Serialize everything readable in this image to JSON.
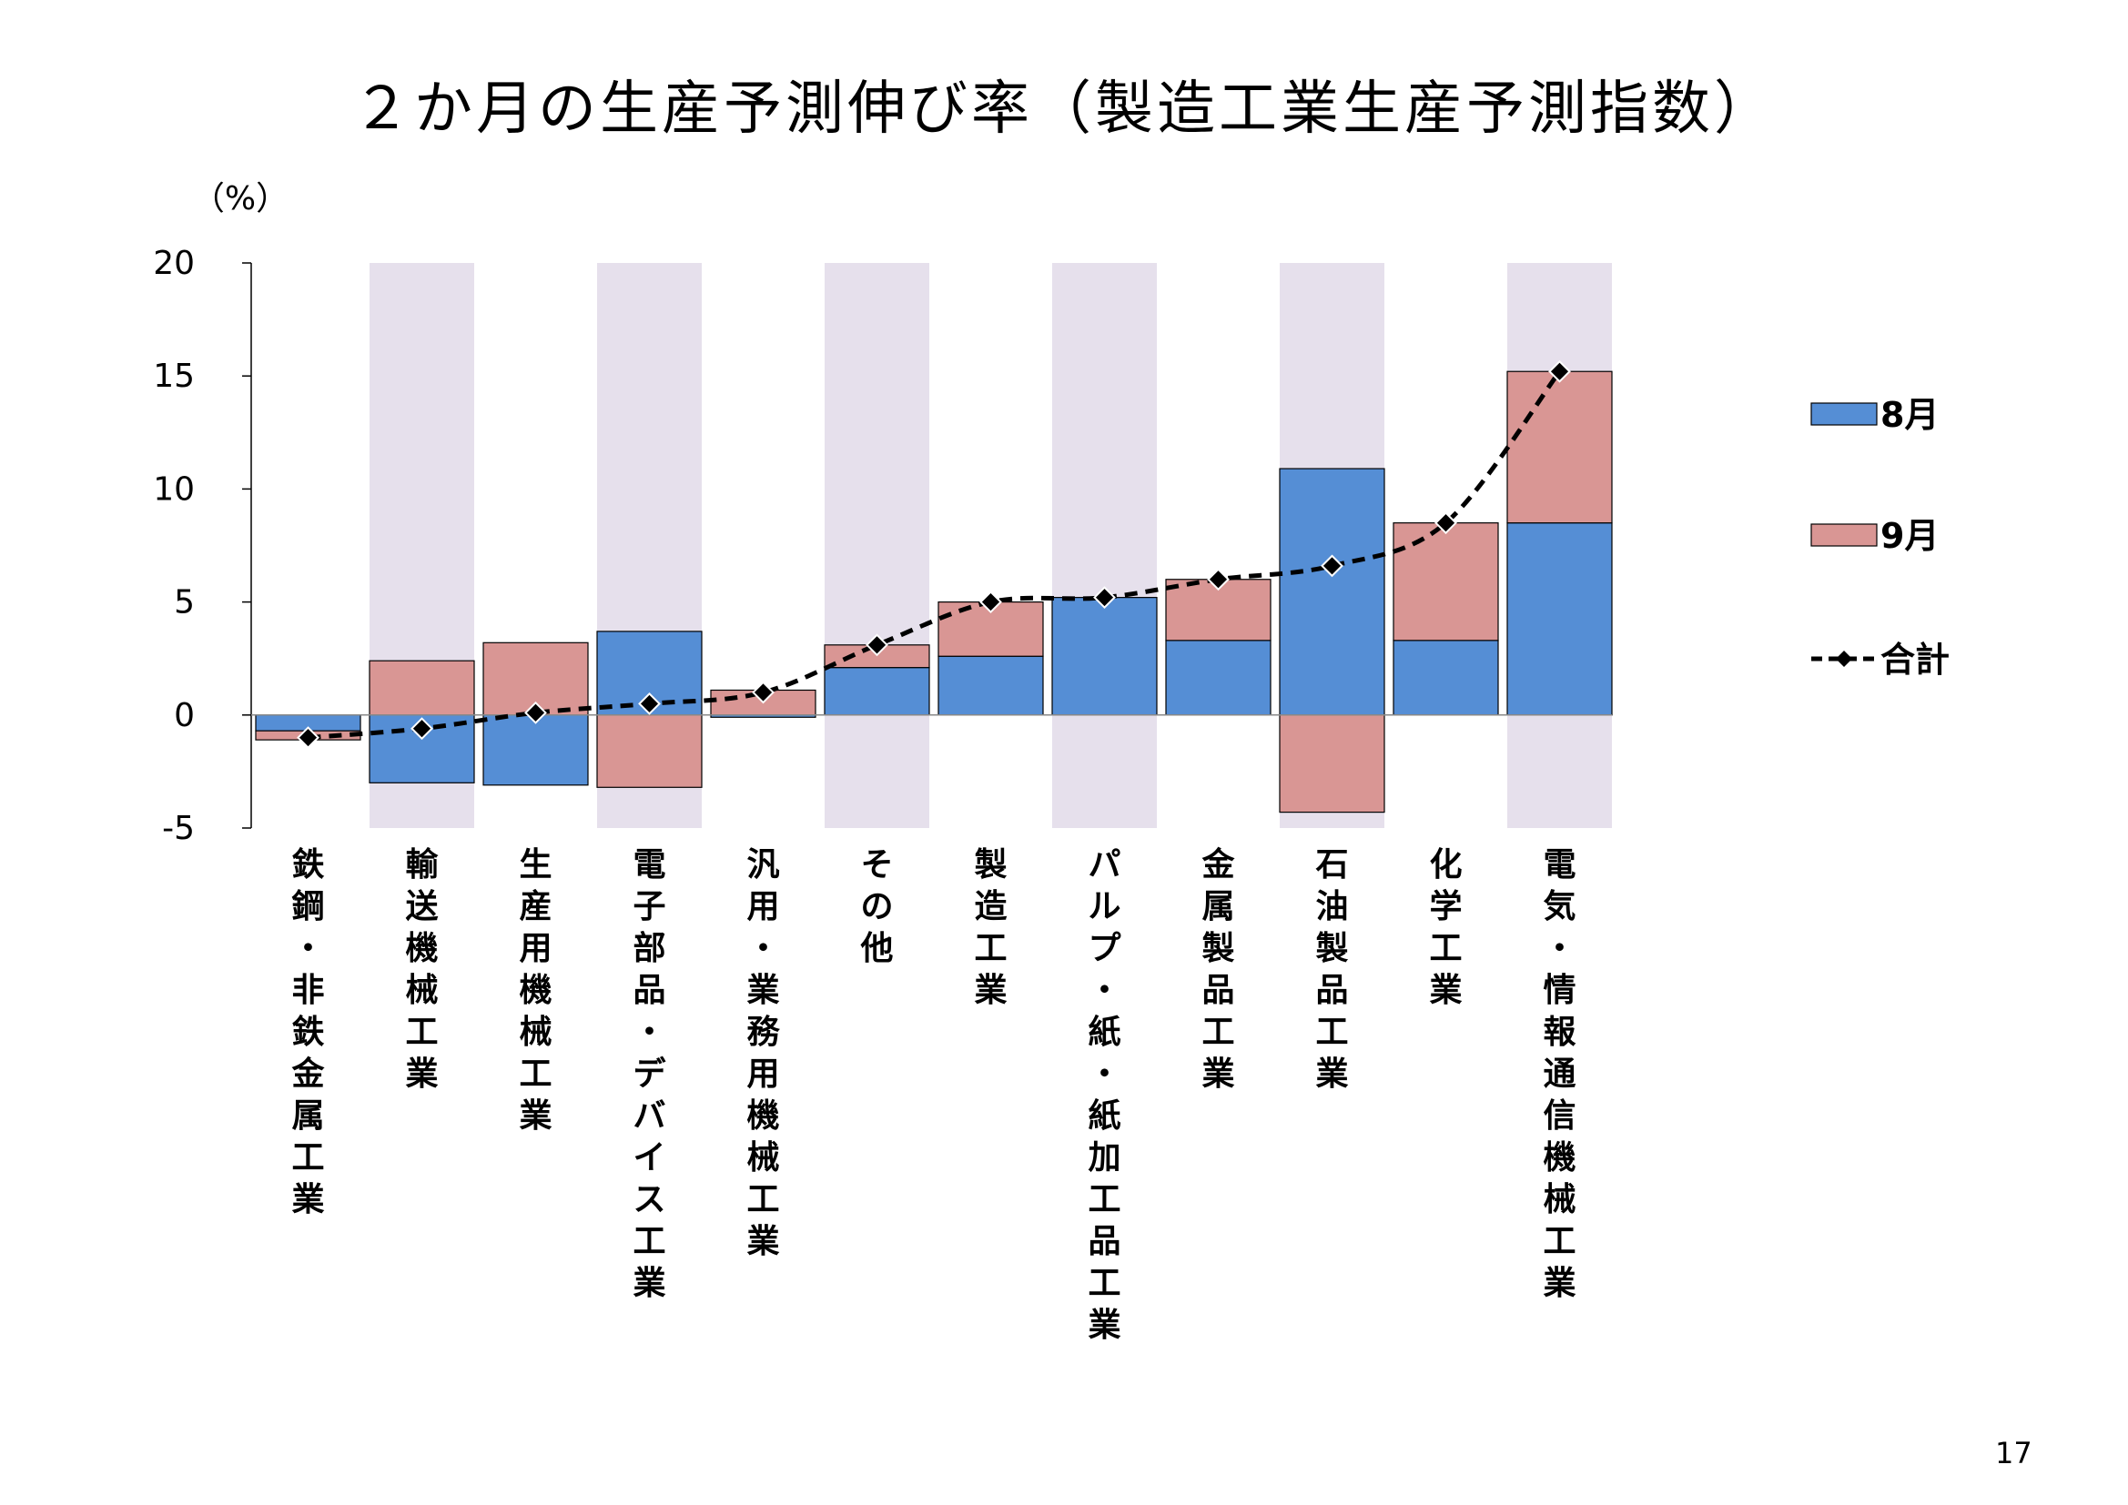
{
  "page": {
    "number": "17"
  },
  "chart_data": {
    "type": "bar",
    "stacked": true,
    "title": "２か月の生産予測伸び率（製造工業生産予測指数）",
    "ylabel": "（%）",
    "xlabel": "",
    "ylim": [
      -5,
      20
    ],
    "yticks": [
      "20",
      "15",
      "10",
      "5",
      "0",
      "-5"
    ],
    "grid": false,
    "legend_position": "right",
    "shaded_bands": "alternate categories",
    "colors": {
      "aug": "#558ed5",
      "sep": "#d99694",
      "band": "#e6e0ec",
      "total_line": "#000000",
      "total_marker_fill": "#000000",
      "total_marker_edge": "#ffffff"
    },
    "categories": [
      "鉄鋼・非鉄金属工業",
      "輸送機械工業",
      "生産用機械工業",
      "電子部品・デバイス工業",
      "汎用・業務用機械工業",
      "その他",
      "製造工業",
      "パルプ・紙・紙加工品工業",
      "金属製品工業",
      "石油製品工業",
      "化学工業",
      "電気・情報通信機械工業"
    ],
    "series": [
      {
        "name": "8月",
        "type": "bar",
        "color": "#558ed5",
        "values": [
          -0.7,
          -3.0,
          -3.1,
          3.7,
          -0.1,
          2.1,
          2.6,
          5.2,
          3.3,
          10.9,
          3.3,
          8.5
        ]
      },
      {
        "name": "9月",
        "type": "bar",
        "color": "#d99694",
        "values": [
          -0.4,
          2.4,
          3.2,
          -3.2,
          1.1,
          1.0,
          2.4,
          0.0,
          2.7,
          -4.3,
          5.2,
          6.7
        ]
      },
      {
        "name": "合計",
        "type": "line",
        "style": "dashed",
        "marker": "diamond",
        "values": [
          -1.0,
          -0.6,
          0.1,
          0.5,
          1.0,
          3.1,
          5.0,
          5.2,
          6.0,
          6.6,
          8.5,
          15.2
        ]
      }
    ]
  }
}
